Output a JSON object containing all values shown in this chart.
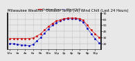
{
  "title": "Milwaukee Weather  Outdoor Temp (vs) Wind Chill (Last 24 Hours)",
  "temp": [
    28,
    28,
    28,
    28,
    28,
    28,
    29,
    32,
    36,
    42,
    48,
    53,
    57,
    59,
    61,
    62,
    62,
    62,
    61,
    58,
    50,
    42,
    36,
    30
  ],
  "windchill": [
    20,
    19,
    18,
    17,
    17,
    16,
    18,
    24,
    30,
    37,
    44,
    50,
    54,
    57,
    60,
    61,
    61,
    61,
    59,
    55,
    45,
    36,
    28,
    21
  ],
  "ylim": [
    10,
    70
  ],
  "yticks": [
    20,
    30,
    40,
    50,
    60,
    70
  ],
  "n_points": 24,
  "temp_color": "#cc0000",
  "windchill_color": "#0000bb",
  "grid_color": "#aaaaaa",
  "bg_color": "#e8e8e8",
  "plot_bg": "#e8e8e8",
  "title_fontsize": 3.8,
  "tick_fontsize": 3.2,
  "hours": [
    "12a",
    "2a",
    "4a",
    "6a",
    "8a",
    "10a",
    "12p",
    "2p",
    "4p",
    "6p",
    "8p",
    "10p"
  ]
}
